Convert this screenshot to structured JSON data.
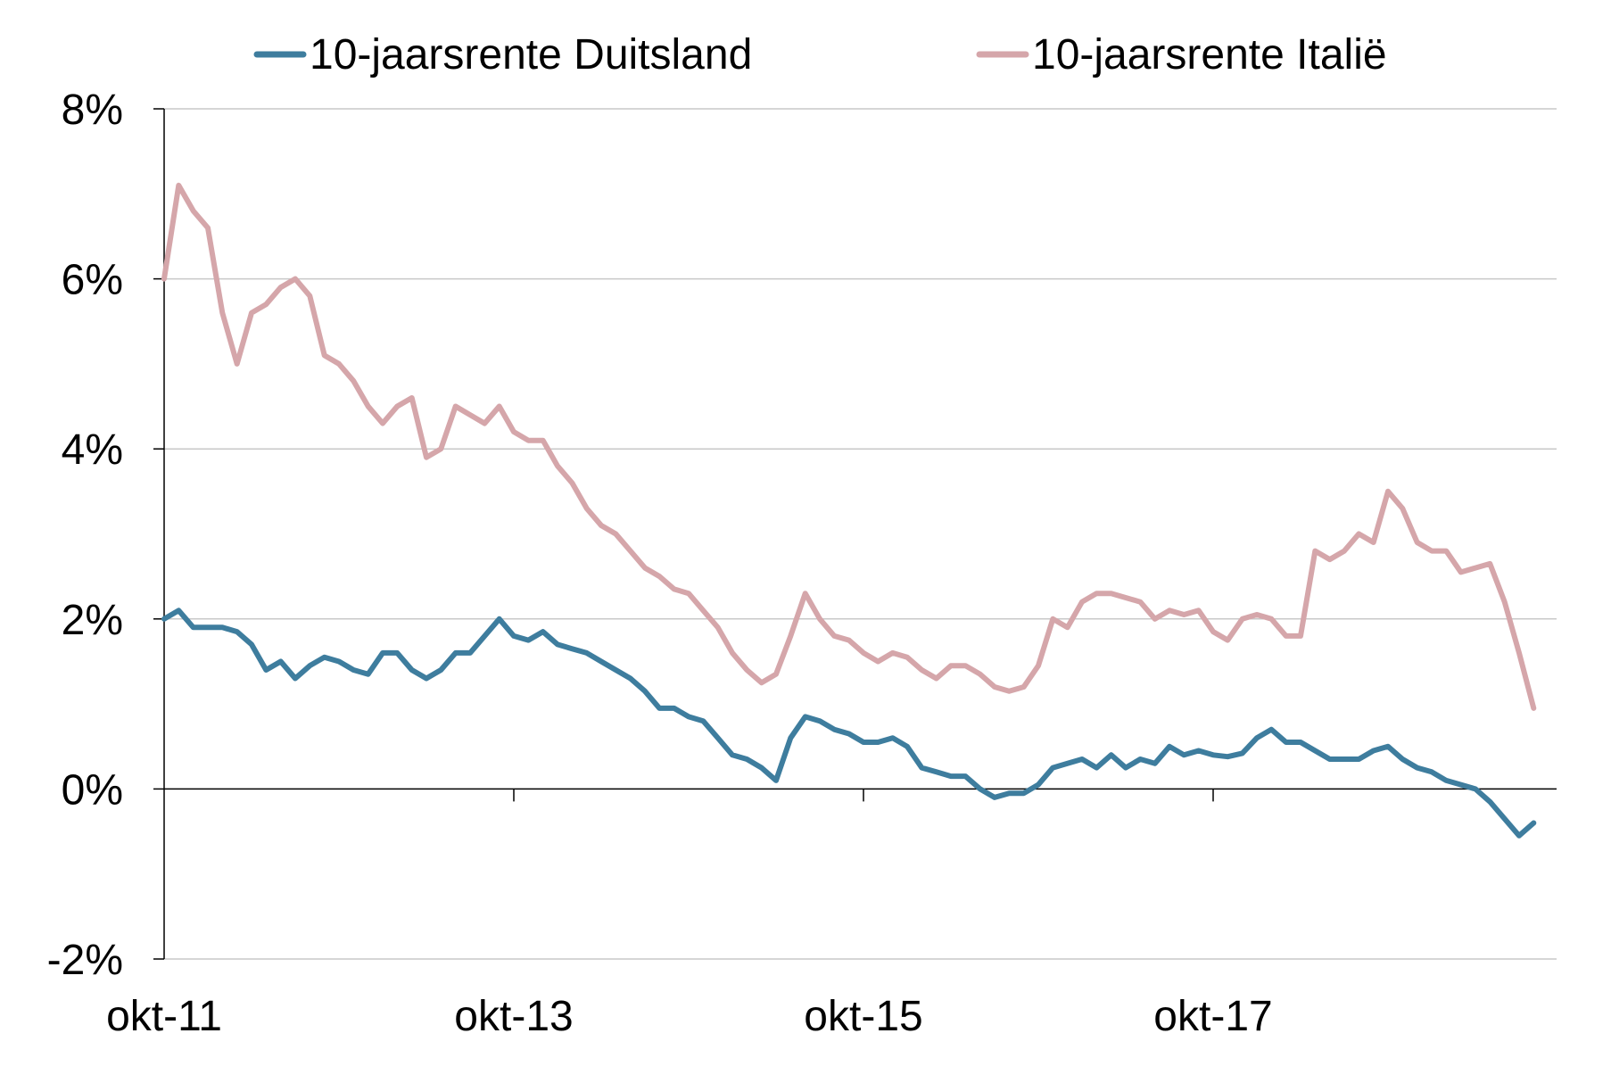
{
  "chart_data": {
    "type": "line",
    "title": "",
    "xlabel": "",
    "ylabel": "",
    "x_ticks": [
      "okt-11",
      "okt-13",
      "okt-15",
      "okt-17"
    ],
    "x_range": [
      "2011-10",
      "2019-08"
    ],
    "y_ticks": [
      "-2%",
      "0%",
      "2%",
      "4%",
      "6%",
      "8%"
    ],
    "y_tick_values": [
      -2,
      0,
      2,
      4,
      6,
      8
    ],
    "ylim": [
      -2,
      8
    ],
    "grid": "horizontal",
    "legend_position": "top",
    "series": [
      {
        "name": "10-jaarsrente Duitsland",
        "color": "#3e7d9e",
        "points": [
          [
            "2011-10",
            2.0
          ],
          [
            "2011-11",
            2.1
          ],
          [
            "2011-12",
            1.9
          ],
          [
            "2012-01",
            1.9
          ],
          [
            "2012-02",
            1.9
          ],
          [
            "2012-03",
            1.85
          ],
          [
            "2012-04",
            1.7
          ],
          [
            "2012-05",
            1.4
          ],
          [
            "2012-06",
            1.5
          ],
          [
            "2012-07",
            1.3
          ],
          [
            "2012-08",
            1.45
          ],
          [
            "2012-09",
            1.55
          ],
          [
            "2012-10",
            1.5
          ],
          [
            "2012-11",
            1.4
          ],
          [
            "2012-12",
            1.35
          ],
          [
            "2013-01",
            1.6
          ],
          [
            "2013-02",
            1.6
          ],
          [
            "2013-03",
            1.4
          ],
          [
            "2013-04",
            1.3
          ],
          [
            "2013-05",
            1.4
          ],
          [
            "2013-06",
            1.6
          ],
          [
            "2013-07",
            1.6
          ],
          [
            "2013-08",
            1.8
          ],
          [
            "2013-09",
            2.0
          ],
          [
            "2013-10",
            1.8
          ],
          [
            "2013-11",
            1.75
          ],
          [
            "2013-12",
            1.85
          ],
          [
            "2014-01",
            1.7
          ],
          [
            "2014-02",
            1.65
          ],
          [
            "2014-03",
            1.6
          ],
          [
            "2014-04",
            1.5
          ],
          [
            "2014-05",
            1.4
          ],
          [
            "2014-06",
            1.3
          ],
          [
            "2014-07",
            1.15
          ],
          [
            "2014-08",
            0.95
          ],
          [
            "2014-09",
            0.95
          ],
          [
            "2014-10",
            0.85
          ],
          [
            "2014-11",
            0.8
          ],
          [
            "2014-12",
            0.6
          ],
          [
            "2015-01",
            0.4
          ],
          [
            "2015-02",
            0.35
          ],
          [
            "2015-03",
            0.25
          ],
          [
            "2015-04",
            0.1
          ],
          [
            "2015-05",
            0.6
          ],
          [
            "2015-06",
            0.85
          ],
          [
            "2015-07",
            0.8
          ],
          [
            "2015-08",
            0.7
          ],
          [
            "2015-09",
            0.65
          ],
          [
            "2015-10",
            0.55
          ],
          [
            "2015-11",
            0.55
          ],
          [
            "2015-12",
            0.6
          ],
          [
            "2016-01",
            0.5
          ],
          [
            "2016-02",
            0.25
          ],
          [
            "2016-03",
            0.2
          ],
          [
            "2016-04",
            0.15
          ],
          [
            "2016-05",
            0.15
          ],
          [
            "2016-06",
            0.0
          ],
          [
            "2016-07",
            -0.1
          ],
          [
            "2016-08",
            -0.05
          ],
          [
            "2016-09",
            -0.05
          ],
          [
            "2016-10",
            0.05
          ],
          [
            "2016-11",
            0.25
          ],
          [
            "2016-12",
            0.3
          ],
          [
            "2017-01",
            0.35
          ],
          [
            "2017-02",
            0.25
          ],
          [
            "2017-03",
            0.4
          ],
          [
            "2017-04",
            0.25
          ],
          [
            "2017-05",
            0.35
          ],
          [
            "2017-06",
            0.3
          ],
          [
            "2017-07",
            0.5
          ],
          [
            "2017-08",
            0.4
          ],
          [
            "2017-09",
            0.45
          ],
          [
            "2017-10",
            0.4
          ],
          [
            "2017-11",
            0.38
          ],
          [
            "2017-12",
            0.42
          ],
          [
            "2018-01",
            0.6
          ],
          [
            "2018-02",
            0.7
          ],
          [
            "2018-03",
            0.55
          ],
          [
            "2018-04",
            0.55
          ],
          [
            "2018-05",
            0.45
          ],
          [
            "2018-06",
            0.35
          ],
          [
            "2018-07",
            0.35
          ],
          [
            "2018-08",
            0.35
          ],
          [
            "2018-09",
            0.45
          ],
          [
            "2018-10",
            0.5
          ],
          [
            "2018-11",
            0.35
          ],
          [
            "2018-12",
            0.25
          ],
          [
            "2019-01",
            0.2
          ],
          [
            "2019-02",
            0.1
          ],
          [
            "2019-03",
            0.05
          ],
          [
            "2019-04",
            0.0
          ],
          [
            "2019-05",
            -0.15
          ],
          [
            "2019-06",
            -0.35
          ],
          [
            "2019-07",
            -0.55
          ],
          [
            "2019-08",
            -0.4
          ]
        ]
      },
      {
        "name": "10-jaarsrente Italië",
        "color": "#d5a6aa",
        "points": [
          [
            "2011-10",
            6.0
          ],
          [
            "2011-11",
            7.1
          ],
          [
            "2011-12",
            6.8
          ],
          [
            "2012-01",
            6.6
          ],
          [
            "2012-02",
            5.6
          ],
          [
            "2012-03",
            5.0
          ],
          [
            "2012-04",
            5.6
          ],
          [
            "2012-05",
            5.7
          ],
          [
            "2012-06",
            5.9
          ],
          [
            "2012-07",
            6.0
          ],
          [
            "2012-08",
            5.8
          ],
          [
            "2012-09",
            5.1
          ],
          [
            "2012-10",
            5.0
          ],
          [
            "2012-11",
            4.8
          ],
          [
            "2012-12",
            4.5
          ],
          [
            "2013-01",
            4.3
          ],
          [
            "2013-02",
            4.5
          ],
          [
            "2013-03",
            4.6
          ],
          [
            "2013-04",
            3.9
          ],
          [
            "2013-05",
            4.0
          ],
          [
            "2013-06",
            4.5
          ],
          [
            "2013-07",
            4.4
          ],
          [
            "2013-08",
            4.3
          ],
          [
            "2013-09",
            4.5
          ],
          [
            "2013-10",
            4.2
          ],
          [
            "2013-11",
            4.1
          ],
          [
            "2013-12",
            4.1
          ],
          [
            "2014-01",
            3.8
          ],
          [
            "2014-02",
            3.6
          ],
          [
            "2014-03",
            3.3
          ],
          [
            "2014-04",
            3.1
          ],
          [
            "2014-05",
            3.0
          ],
          [
            "2014-06",
            2.8
          ],
          [
            "2014-07",
            2.6
          ],
          [
            "2014-08",
            2.5
          ],
          [
            "2014-09",
            2.35
          ],
          [
            "2014-10",
            2.3
          ],
          [
            "2014-11",
            2.1
          ],
          [
            "2014-12",
            1.9
          ],
          [
            "2015-01",
            1.6
          ],
          [
            "2015-02",
            1.4
          ],
          [
            "2015-03",
            1.25
          ],
          [
            "2015-04",
            1.35
          ],
          [
            "2015-05",
            1.8
          ],
          [
            "2015-06",
            2.3
          ],
          [
            "2015-07",
            2.0
          ],
          [
            "2015-08",
            1.8
          ],
          [
            "2015-09",
            1.75
          ],
          [
            "2015-10",
            1.6
          ],
          [
            "2015-11",
            1.5
          ],
          [
            "2015-12",
            1.6
          ],
          [
            "2016-01",
            1.55
          ],
          [
            "2016-02",
            1.4
          ],
          [
            "2016-03",
            1.3
          ],
          [
            "2016-04",
            1.45
          ],
          [
            "2016-05",
            1.45
          ],
          [
            "2016-06",
            1.35
          ],
          [
            "2016-07",
            1.2
          ],
          [
            "2016-08",
            1.15
          ],
          [
            "2016-09",
            1.2
          ],
          [
            "2016-10",
            1.45
          ],
          [
            "2016-11",
            2.0
          ],
          [
            "2016-12",
            1.9
          ],
          [
            "2017-01",
            2.2
          ],
          [
            "2017-02",
            2.3
          ],
          [
            "2017-03",
            2.3
          ],
          [
            "2017-04",
            2.25
          ],
          [
            "2017-05",
            2.2
          ],
          [
            "2017-06",
            2.0
          ],
          [
            "2017-07",
            2.1
          ],
          [
            "2017-08",
            2.05
          ],
          [
            "2017-09",
            2.1
          ],
          [
            "2017-10",
            1.85
          ],
          [
            "2017-11",
            1.75
          ],
          [
            "2017-12",
            2.0
          ],
          [
            "2018-01",
            2.05
          ],
          [
            "2018-02",
            2.0
          ],
          [
            "2018-03",
            1.8
          ],
          [
            "2018-04",
            1.8
          ],
          [
            "2018-05",
            2.8
          ],
          [
            "2018-06",
            2.7
          ],
          [
            "2018-07",
            2.8
          ],
          [
            "2018-08",
            3.0
          ],
          [
            "2018-09",
            2.9
          ],
          [
            "2018-10",
            3.5
          ],
          [
            "2018-11",
            3.3
          ],
          [
            "2018-12",
            2.9
          ],
          [
            "2019-01",
            2.8
          ],
          [
            "2019-02",
            2.8
          ],
          [
            "2019-03",
            2.55
          ],
          [
            "2019-04",
            2.6
          ],
          [
            "2019-05",
            2.65
          ],
          [
            "2019-06",
            2.2
          ],
          [
            "2019-07",
            1.6
          ],
          [
            "2019-08",
            0.95
          ]
        ]
      }
    ]
  }
}
